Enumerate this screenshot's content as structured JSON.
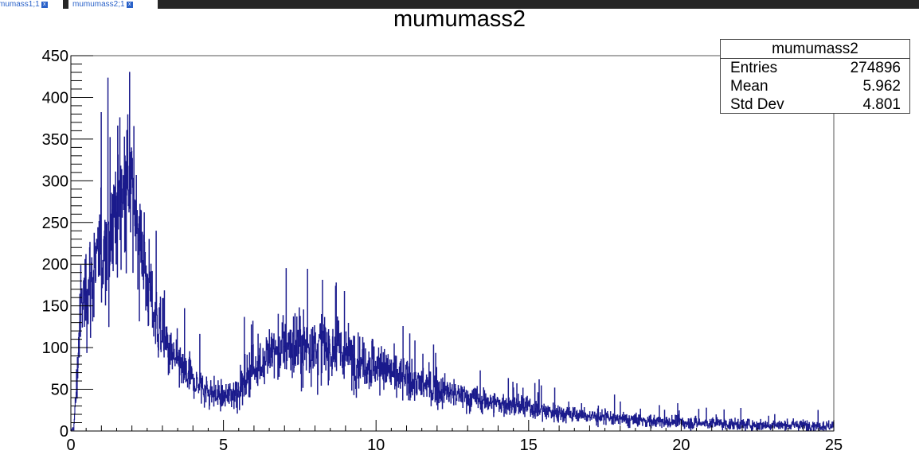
{
  "tabs": [
    {
      "label": "mumass1;1",
      "close": "x"
    },
    {
      "label": "mumumass2;1",
      "close": "x"
    }
  ],
  "stats_box": {
    "title": "mumumass2",
    "rows": [
      {
        "label": "Entries",
        "value": "274896"
      },
      {
        "label": "Mean",
        "value": "5.962"
      },
      {
        "label": "Std Dev",
        "value": "4.801"
      }
    ]
  },
  "colors": {
    "line": "#1a1a8c",
    "fill_light": "#6f7fc0",
    "axis": "#000000",
    "frame": "#555555"
  },
  "chart_data": {
    "type": "histogram",
    "title": "mumumass2",
    "xlabel": "",
    "ylabel": "",
    "xlim": [
      0,
      25
    ],
    "ylim": [
      0,
      450
    ],
    "x_ticks": [
      "0",
      "5",
      "10",
      "15",
      "20",
      "25"
    ],
    "y_ticks": [
      "0",
      "50",
      "100",
      "150",
      "200",
      "250",
      "300",
      "350",
      "400",
      "450"
    ],
    "nbins": 2500,
    "bin_width": 0.01,
    "envelope": {
      "x": [
        0.0,
        0.1,
        0.2,
        0.3,
        0.5,
        0.8,
        1.2,
        1.5,
        1.8,
        2.0,
        2.2,
        2.5,
        2.8,
        3.2,
        3.6,
        4.0,
        4.5,
        5.0,
        5.5,
        6.0,
        6.5,
        7.0,
        7.5,
        8.0,
        8.5,
        9.0,
        9.5,
        10.0,
        10.5,
        11.0,
        12.0,
        13.0,
        14.0,
        15.0,
        16.0,
        17.0,
        18.0,
        19.0,
        20.0,
        21.0,
        22.0,
        23.0,
        24.0,
        25.0
      ],
      "y": [
        0,
        5,
        60,
        140,
        170,
        190,
        230,
        270,
        300,
        280,
        250,
        180,
        130,
        95,
        75,
        60,
        48,
        40,
        50,
        75,
        92,
        100,
        102,
        100,
        100,
        92,
        85,
        78,
        70,
        62,
        50,
        40,
        33,
        28,
        22,
        18,
        14,
        12,
        10,
        9,
        8,
        7,
        7,
        6
      ],
      "noise": [
        0,
        5,
        30,
        45,
        55,
        60,
        70,
        80,
        85,
        80,
        70,
        50,
        40,
        30,
        25,
        20,
        18,
        16,
        20,
        28,
        34,
        38,
        40,
        40,
        38,
        34,
        30,
        28,
        24,
        22,
        18,
        15,
        13,
        12,
        10,
        9,
        8,
        7,
        7,
        6,
        6,
        6,
        6,
        6
      ]
    },
    "max_bin": {
      "x": 1.92,
      "y": 430
    }
  }
}
